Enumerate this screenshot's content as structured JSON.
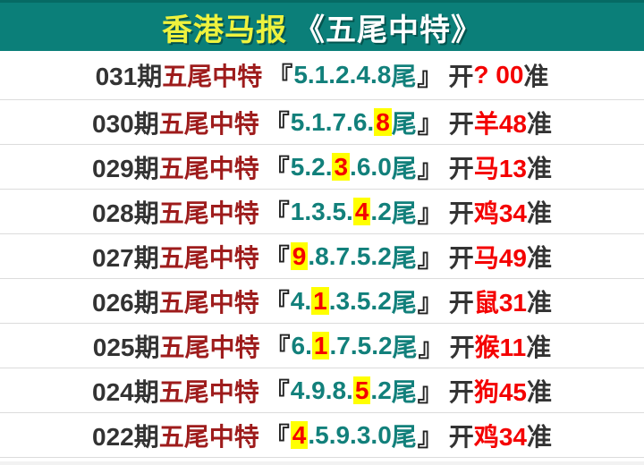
{
  "header": {
    "title_yellow": "香港马报",
    "title_white": "《五尾中特》"
  },
  "record_format": {
    "label": "五尾中特",
    "bracket_open": "『",
    "bracket_close": "』",
    "tail_char": "尾",
    "open_char": "开",
    "accurate_char": "准",
    "dot": "."
  },
  "rows": [
    {
      "issue": "031期",
      "tails": [
        "5",
        "1",
        "2",
        "4",
        "8"
      ],
      "hit_index": -1,
      "result": "? 00"
    },
    {
      "issue": "030期",
      "tails": [
        "5",
        "1",
        "7",
        "6",
        "8"
      ],
      "hit_index": 4,
      "result": "羊48"
    },
    {
      "issue": "029期",
      "tails": [
        "5",
        "2",
        "3",
        "6",
        "0"
      ],
      "hit_index": 2,
      "result": "马13"
    },
    {
      "issue": "028期",
      "tails": [
        "1",
        "3",
        "5",
        "4",
        "2"
      ],
      "hit_index": 3,
      "result": "鸡34"
    },
    {
      "issue": "027期",
      "tails": [
        "9",
        "8",
        "7",
        "5",
        "2"
      ],
      "hit_index": 0,
      "result": "马49"
    },
    {
      "issue": "026期",
      "tails": [
        "4",
        "1",
        "3",
        "5",
        "2"
      ],
      "hit_index": 1,
      "result": "鼠31"
    },
    {
      "issue": "025期",
      "tails": [
        "6",
        "1",
        "7",
        "5",
        "2"
      ],
      "hit_index": 1,
      "result": "猴11"
    },
    {
      "issue": "024期",
      "tails": [
        "4",
        "9",
        "8",
        "5",
        "2"
      ],
      "hit_index": 3,
      "result": "狗45"
    },
    {
      "issue": "022期",
      "tails": [
        "4",
        "5",
        "9",
        "3",
        "0"
      ],
      "hit_index": 0,
      "result": "鸡34"
    }
  ],
  "colors": {
    "header_bg": "#0b7f79",
    "header_top_border": "#066a64",
    "title_yellow": "#eef23e",
    "title_white": "#ffffff",
    "label_red": "#9e1c1c",
    "digit_teal": "#12807b",
    "hit_red": "#f40000",
    "hit_highlight_bg": "#ffff00",
    "text_dark": "#333333",
    "divider": "#dcdcdc",
    "footer_bg": "#f2f2f2"
  }
}
